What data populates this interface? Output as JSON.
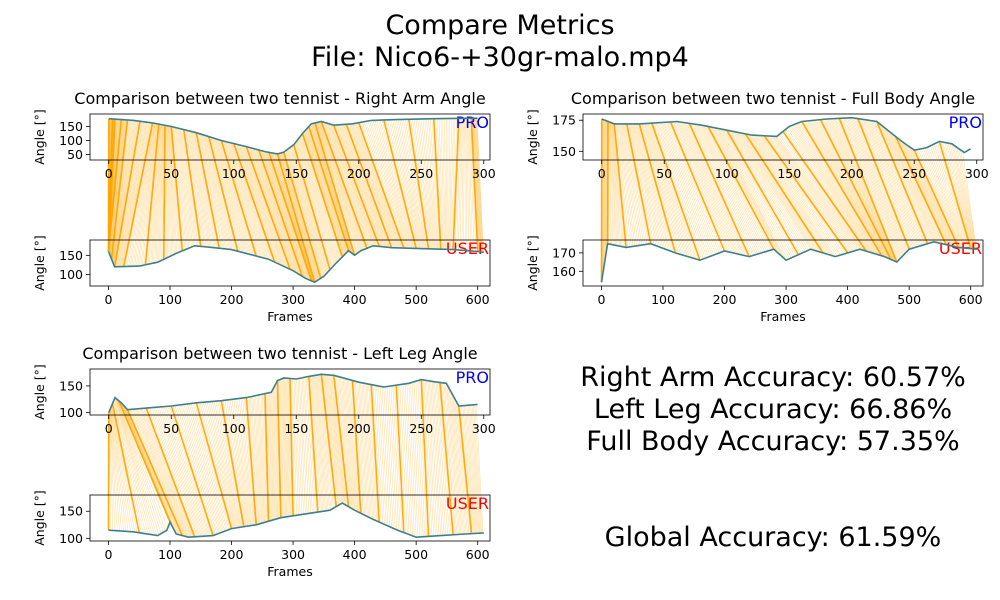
{
  "figure": {
    "title": "Compare Metrics",
    "subtitle": "File: Nico6-+30gr-malo.mp4"
  },
  "labels": {
    "pro": "PRO",
    "user": "USER",
    "pro_color": "#0000ff",
    "user_color": "#ff0000",
    "line_color": "#3d7f8f",
    "link_color": "#ffa500"
  },
  "accuracy": {
    "right_arm": "Right Arm Accuracy: 60.57%",
    "left_leg": "Left Leg Accuracy: 66.86%",
    "full_body": "Full Body Accuracy: 57.35%",
    "global": "Global Accuracy: 61.59%"
  },
  "chart_data": [
    {
      "type": "line",
      "title": "Comparison between two tennist - Right Arm Angle",
      "pro": {
        "ylabel": "Angle [°]",
        "xlabel": "",
        "xlim": [
          -15,
          305
        ],
        "ylim": [
          30,
          195
        ],
        "xticks": [
          0,
          50,
          100,
          150,
          200,
          250,
          300
        ],
        "yticks": [
          50,
          100,
          150
        ],
        "points": [
          [
            0,
            178
          ],
          [
            10,
            175
          ],
          [
            20,
            172
          ],
          [
            35,
            163
          ],
          [
            50,
            150
          ],
          [
            70,
            128
          ],
          [
            90,
            100
          ],
          [
            110,
            78
          ],
          [
            125,
            60
          ],
          [
            135,
            52
          ],
          [
            140,
            58
          ],
          [
            148,
            85
          ],
          [
            155,
            125
          ],
          [
            162,
            160
          ],
          [
            170,
            168
          ],
          [
            180,
            155
          ],
          [
            195,
            160
          ],
          [
            210,
            172
          ],
          [
            230,
            175
          ],
          [
            260,
            178
          ],
          [
            290,
            180
          ],
          [
            295,
            180
          ]
        ]
      },
      "user": {
        "ylabel": "Angle [°]",
        "xlabel": "Frames",
        "xlim": [
          -30,
          620
        ],
        "ylim": [
          70,
          190
        ],
        "xticks": [
          0,
          100,
          200,
          300,
          400,
          500,
          600
        ],
        "yticks": [
          100,
          150
        ],
        "points": [
          [
            0,
            160
          ],
          [
            10,
            120
          ],
          [
            50,
            122
          ],
          [
            80,
            132
          ],
          [
            110,
            155
          ],
          [
            140,
            175
          ],
          [
            160,
            172
          ],
          [
            200,
            165
          ],
          [
            260,
            140
          ],
          [
            300,
            110
          ],
          [
            320,
            90
          ],
          [
            335,
            80
          ],
          [
            350,
            95
          ],
          [
            370,
            130
          ],
          [
            390,
            162
          ],
          [
            400,
            150
          ],
          [
            410,
            162
          ],
          [
            430,
            175
          ],
          [
            460,
            170
          ],
          [
            500,
            168
          ],
          [
            560,
            165
          ],
          [
            600,
            160
          ],
          [
            610,
            158
          ]
        ]
      },
      "links": [
        [
          0,
          0
        ],
        [
          3,
          0
        ],
        [
          5,
          0
        ],
        [
          10,
          0
        ],
        [
          15,
          5
        ],
        [
          25,
          10
        ],
        [
          35,
          25
        ],
        [
          40,
          60
        ],
        [
          45,
          90
        ],
        [
          50,
          120
        ],
        [
          60,
          150
        ],
        [
          70,
          180
        ],
        [
          80,
          210
        ],
        [
          90,
          240
        ],
        [
          100,
          270
        ],
        [
          110,
          295
        ],
        [
          120,
          315
        ],
        [
          128,
          330
        ],
        [
          135,
          335
        ],
        [
          140,
          345
        ],
        [
          148,
          360
        ],
        [
          155,
          380
        ],
        [
          160,
          390
        ],
        [
          165,
          400
        ],
        [
          170,
          420
        ],
        [
          180,
          440
        ],
        [
          190,
          460
        ],
        [
          200,
          480
        ],
        [
          220,
          500
        ],
        [
          240,
          520
        ],
        [
          260,
          540
        ],
        [
          280,
          560
        ],
        [
          290,
          600
        ],
        [
          295,
          610
        ]
      ]
    },
    {
      "type": "line",
      "title": "Comparison between two tennist - Full Body Angle",
      "pro": {
        "ylabel": "Angle [°]",
        "xlabel": "",
        "xlim": [
          -15,
          305
        ],
        "ylim": [
          143,
          180
        ],
        "xticks": [
          0,
          50,
          100,
          150,
          200,
          250,
          300
        ],
        "yticks": [
          150,
          175
        ],
        "points": [
          [
            0,
            176
          ],
          [
            10,
            172
          ],
          [
            30,
            172
          ],
          [
            60,
            174
          ],
          [
            80,
            171
          ],
          [
            100,
            167
          ],
          [
            120,
            163
          ],
          [
            140,
            162
          ],
          [
            150,
            170
          ],
          [
            160,
            174
          ],
          [
            180,
            176
          ],
          [
            200,
            177
          ],
          [
            220,
            174
          ],
          [
            240,
            158
          ],
          [
            250,
            151
          ],
          [
            260,
            153
          ],
          [
            270,
            158
          ],
          [
            280,
            156
          ],
          [
            290,
            149
          ],
          [
            295,
            152
          ]
        ]
      },
      "user": {
        "ylabel": "Angle [°]",
        "xlabel": "Frames",
        "xlim": [
          -30,
          620
        ],
        "ylim": [
          152,
          177
        ],
        "xticks": [
          0,
          100,
          200,
          300,
          400,
          500,
          600
        ],
        "yticks": [
          160,
          170
        ],
        "points": [
          [
            0,
            154
          ],
          [
            10,
            175
          ],
          [
            40,
            173
          ],
          [
            80,
            175
          ],
          [
            120,
            170
          ],
          [
            160,
            166
          ],
          [
            200,
            171
          ],
          [
            240,
            168
          ],
          [
            280,
            172
          ],
          [
            300,
            166
          ],
          [
            340,
            172
          ],
          [
            380,
            168
          ],
          [
            420,
            172
          ],
          [
            460,
            168
          ],
          [
            480,
            165
          ],
          [
            500,
            172
          ],
          [
            540,
            176
          ],
          [
            580,
            173
          ],
          [
            610,
            172
          ]
        ]
      },
      "links": [
        [
          0,
          0
        ],
        [
          5,
          10
        ],
        [
          10,
          40
        ],
        [
          20,
          80
        ],
        [
          30,
          120
        ],
        [
          40,
          160
        ],
        [
          55,
          200
        ],
        [
          70,
          240
        ],
        [
          85,
          280
        ],
        [
          100,
          320
        ],
        [
          115,
          360
        ],
        [
          130,
          400
        ],
        [
          145,
          430
        ],
        [
          160,
          455
        ],
        [
          175,
          470
        ],
        [
          190,
          480
        ],
        [
          205,
          500
        ],
        [
          220,
          530
        ],
        [
          235,
          560
        ],
        [
          250,
          580
        ],
        [
          270,
          600
        ],
        [
          290,
          610
        ]
      ]
    },
    {
      "type": "line",
      "title": "Comparison between two tennist - Left Leg Angle",
      "pro": {
        "ylabel": "Angle [°]",
        "xlabel": "",
        "xlim": [
          -15,
          305
        ],
        "ylim": [
          95,
          182
        ],
        "xticks": [
          0,
          50,
          100,
          150,
          200,
          250,
          300
        ],
        "yticks": [
          100,
          150
        ],
        "points": [
          [
            0,
            100
          ],
          [
            5,
            128
          ],
          [
            10,
            118
          ],
          [
            15,
            105
          ],
          [
            30,
            108
          ],
          [
            50,
            112
          ],
          [
            70,
            118
          ],
          [
            90,
            122
          ],
          [
            110,
            128
          ],
          [
            130,
            138
          ],
          [
            135,
            160
          ],
          [
            140,
            165
          ],
          [
            150,
            163
          ],
          [
            160,
            168
          ],
          [
            170,
            172
          ],
          [
            180,
            170
          ],
          [
            200,
            157
          ],
          [
            220,
            148
          ],
          [
            240,
            155
          ],
          [
            250,
            162
          ],
          [
            260,
            158
          ],
          [
            270,
            155
          ],
          [
            280,
            112
          ],
          [
            295,
            115
          ]
        ]
      },
      "user": {
        "ylabel": "Angle [°]",
        "xlabel": "Frames",
        "xlim": [
          -30,
          620
        ],
        "ylim": [
          95,
          180
        ],
        "xticks": [
          0,
          100,
          200,
          300,
          400,
          500,
          600
        ],
        "yticks": [
          100,
          150
        ],
        "points": [
          [
            0,
            115
          ],
          [
            40,
            112
          ],
          [
            80,
            105
          ],
          [
            95,
            115
          ],
          [
            100,
            130
          ],
          [
            110,
            108
          ],
          [
            130,
            102
          ],
          [
            170,
            105
          ],
          [
            200,
            118
          ],
          [
            240,
            125
          ],
          [
            280,
            138
          ],
          [
            320,
            145
          ],
          [
            360,
            152
          ],
          [
            380,
            165
          ],
          [
            400,
            152
          ],
          [
            430,
            135
          ],
          [
            470,
            115
          ],
          [
            500,
            102
          ],
          [
            540,
            105
          ],
          [
            580,
            108
          ],
          [
            610,
            110
          ]
        ]
      },
      "links": [
        [
          0,
          0
        ],
        [
          3,
          50
        ],
        [
          8,
          100
        ],
        [
          15,
          120
        ],
        [
          30,
          140
        ],
        [
          50,
          170
        ],
        [
          70,
          200
        ],
        [
          90,
          220
        ],
        [
          110,
          240
        ],
        [
          125,
          260
        ],
        [
          135,
          280
        ],
        [
          145,
          300
        ],
        [
          160,
          340
        ],
        [
          170,
          370
        ],
        [
          180,
          390
        ],
        [
          195,
          410
        ],
        [
          210,
          440
        ],
        [
          230,
          480
        ],
        [
          250,
          520
        ],
        [
          265,
          560
        ],
        [
          280,
          590
        ],
        [
          295,
          610
        ]
      ]
    }
  ]
}
